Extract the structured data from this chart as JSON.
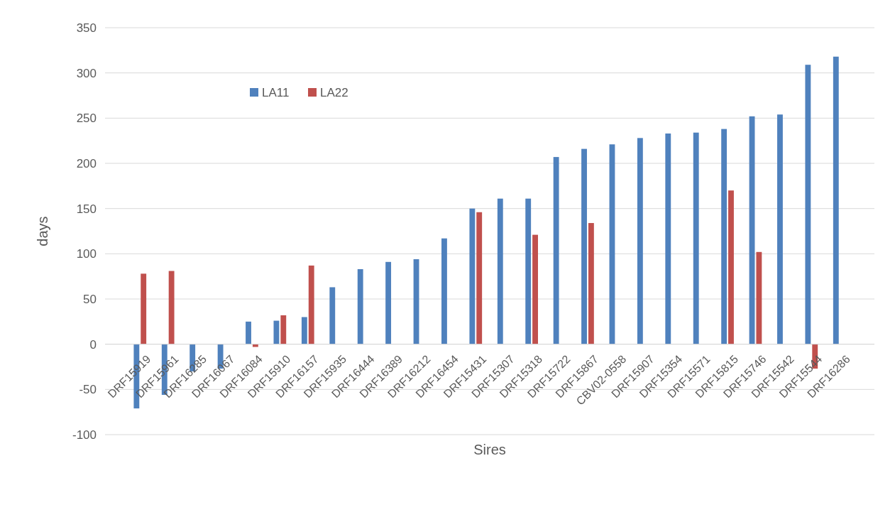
{
  "chart_data": {
    "type": "bar",
    "xlabel": "Sires",
    "ylabel": "days",
    "categories": [
      "DRF15919",
      "DRF15961",
      "DRF16285",
      "DRF16067",
      "DRF16084",
      "DRF15910",
      "DRF16157",
      "DRF15935",
      "DRF16444",
      "DRF16389",
      "DRF16212",
      "DRF16454",
      "DRF15431",
      "DRF15307",
      "DRF15318",
      "DRF15722",
      "DRF15867",
      "CBV02-0558",
      "DRF15907",
      "DRF15354",
      "DRF15571",
      "DRF15815",
      "DRF15746",
      "DRF15542",
      "DRF15544",
      "DRF16286"
    ],
    "series": [
      {
        "name": "LA11",
        "color": "#4f81bd",
        "values": [
          -71,
          -56,
          -30,
          -27,
          25,
          26,
          30,
          63,
          83,
          91,
          94,
          117,
          150,
          161,
          161,
          207,
          216,
          221,
          228,
          233,
          234,
          238,
          252,
          254,
          309,
          318
        ]
      },
      {
        "name": "LA22",
        "color": "#c0504d",
        "values": [
          78,
          81,
          null,
          null,
          -3,
          32,
          87,
          null,
          null,
          null,
          null,
          null,
          146,
          null,
          121,
          null,
          134,
          null,
          null,
          null,
          null,
          170,
          102,
          null,
          -27,
          null
        ]
      }
    ],
    "ylim": [
      -100,
      350
    ],
    "yticks": [
      -100,
      -50,
      0,
      50,
      100,
      150,
      200,
      250,
      300,
      350
    ],
    "grid": "y",
    "legend": "top left"
  }
}
